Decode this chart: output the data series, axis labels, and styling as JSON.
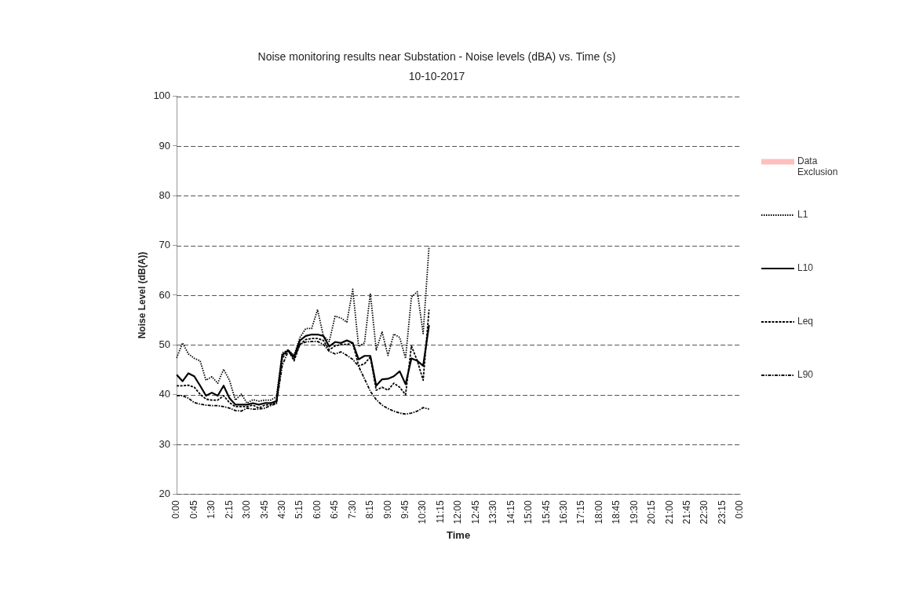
{
  "chart_data": {
    "type": "line",
    "title": "Noise monitoring results near Substation - Noise levels (dBA) vs. Time (s)",
    "subtitle": "10-10-2017",
    "xlabel": "Time",
    "ylabel": "Noise Level (dB(A))",
    "categories": [
      "0:00",
      null,
      null,
      "0:45",
      null,
      null,
      "1:30",
      null,
      null,
      "2:15",
      null,
      null,
      "3:00",
      null,
      null,
      "3:45",
      null,
      null,
      "4:30",
      null,
      null,
      "5:15",
      null,
      null,
      "6:00",
      null,
      null,
      "6:45",
      null,
      null,
      "7:30",
      null,
      null,
      "8:15",
      null,
      null,
      "9:00",
      null,
      null,
      "9:45",
      null,
      null,
      "10:30",
      null,
      null,
      "11:15",
      null,
      null,
      "12:00",
      null,
      null,
      "12:45",
      null,
      null,
      "13:30",
      null,
      null,
      "14:15",
      null,
      null,
      "15:00",
      null,
      null,
      "15:45",
      null,
      null,
      "16:30",
      null,
      null,
      "17:15",
      null,
      null,
      "18:00",
      null,
      null,
      "18:45",
      null,
      null,
      "19:30",
      null,
      null,
      "20:15",
      null,
      null,
      "21:00",
      null,
      null,
      "21:45",
      null,
      null,
      "22:30",
      null,
      null,
      "23:15",
      null,
      null,
      "0:00"
    ],
    "ylim": [
      20,
      100
    ],
    "yticks": [
      20,
      30,
      40,
      50,
      60,
      70,
      80,
      90,
      100
    ],
    "grid": "y",
    "legend": "right",
    "marker": "none",
    "series": [
      {
        "name": "Data Exclusion",
        "type": "bar",
        "color": "#ffbfbf",
        "values": [
          null,
          null,
          null,
          null,
          null,
          null,
          null,
          null,
          null,
          null,
          null,
          null,
          null,
          null,
          null,
          null,
          null,
          null,
          null,
          null,
          null,
          null,
          null,
          null,
          null,
          null,
          null,
          null,
          null,
          null,
          null,
          null,
          null,
          null,
          null,
          null,
          null,
          null,
          null,
          null,
          null,
          null,
          null,
          null,
          null,
          null,
          null,
          null,
          null,
          null,
          null,
          null,
          null,
          null,
          null,
          null,
          null,
          null,
          null,
          null,
          null,
          null,
          null,
          null,
          null,
          null,
          null,
          null,
          null,
          null,
          null,
          null,
          null,
          null,
          null,
          null,
          null,
          null,
          null,
          null,
          null,
          null,
          null,
          null,
          null,
          null,
          null,
          null,
          null,
          null,
          null,
          null,
          null,
          null,
          null,
          null,
          null
        ]
      },
      {
        "name": "L1",
        "color": "#000000",
        "line_style": "dotted",
        "values": [
          47.4,
          50.4,
          48.2,
          47.3,
          46.8,
          42.9,
          43.6,
          42.3,
          45.1,
          42.9,
          38.9,
          40.1,
          38.3,
          39.0,
          38.7,
          38.9,
          38.9,
          39.6,
          48.4,
          49.0,
          47.9,
          51.5,
          53.3,
          53.3,
          57.1,
          51.8,
          50.7,
          55.8,
          55.4,
          54.6,
          61.2,
          49.7,
          50.4,
          60.4,
          49.0,
          52.6,
          47.9,
          52.2,
          51.5,
          47.3,
          59.6,
          60.7,
          52.3,
          69.8,
          null,
          null,
          null,
          null,
          null,
          null,
          null,
          null,
          null,
          null,
          null,
          null,
          null,
          null,
          null,
          null,
          null,
          null,
          null,
          null,
          null,
          null,
          null,
          null,
          null,
          null,
          null,
          null,
          null,
          null,
          null,
          null,
          null,
          null,
          null,
          null,
          null,
          null,
          null,
          null,
          null,
          null,
          null,
          null,
          null,
          null,
          null,
          null,
          null,
          null,
          null,
          null,
          null
        ]
      },
      {
        "name": "L10",
        "color": "#000000",
        "line_style": "solid",
        "values": [
          44.0,
          42.7,
          44.3,
          43.7,
          41.8,
          39.8,
          40.4,
          39.8,
          41.8,
          39.3,
          38.0,
          38.0,
          38.0,
          38.3,
          38.0,
          38.3,
          38.3,
          38.7,
          48.0,
          48.9,
          47.6,
          50.9,
          51.8,
          52.1,
          52.1,
          51.8,
          49.7,
          50.6,
          50.4,
          50.9,
          50.4,
          47.1,
          47.8,
          47.8,
          41.8,
          43.1,
          43.2,
          43.7,
          44.7,
          42.1,
          47.3,
          46.8,
          45.8,
          54.0,
          null,
          null,
          null,
          null,
          null,
          null,
          null,
          null,
          null,
          null,
          null,
          null,
          null,
          null,
          null,
          null,
          null,
          null,
          null,
          null,
          null,
          null,
          null,
          null,
          null,
          null,
          null,
          null,
          null,
          null,
          null,
          null,
          null,
          null,
          null,
          null,
          null,
          null,
          null,
          null,
          null,
          null,
          null,
          null,
          null,
          null,
          null,
          null,
          null,
          null,
          null,
          null,
          null
        ]
      },
      {
        "name": "Leq",
        "color": "#000000",
        "line_style": "dashed",
        "values": [
          41.8,
          41.8,
          41.9,
          41.5,
          40.1,
          39.1,
          38.9,
          38.9,
          39.8,
          38.4,
          37.6,
          37.6,
          37.6,
          37.9,
          37.3,
          37.9,
          38.0,
          38.4,
          47.3,
          49.0,
          46.8,
          50.1,
          51.1,
          51.3,
          51.3,
          50.9,
          49.0,
          49.8,
          50.1,
          50.1,
          50.4,
          45.8,
          46.2,
          47.6,
          40.9,
          41.5,
          40.9,
          42.3,
          41.5,
          40.0,
          49.8,
          46.8,
          42.9,
          57.1,
          null,
          null,
          null,
          null,
          null,
          null,
          null,
          null,
          null,
          null,
          null,
          null,
          null,
          null,
          null,
          null,
          null,
          null,
          null,
          null,
          null,
          null,
          null,
          null,
          null,
          null,
          null,
          null,
          null,
          null,
          null,
          null,
          null,
          null,
          null,
          null,
          null,
          null,
          null,
          null,
          null,
          null,
          null,
          null,
          null,
          null,
          null,
          null,
          null,
          null,
          null,
          null,
          null
        ]
      },
      {
        "name": "L90",
        "color": "#000000",
        "line_style": "dashdot",
        "values": [
          39.8,
          39.8,
          39.3,
          38.4,
          38.1,
          37.9,
          37.8,
          37.8,
          37.6,
          37.3,
          36.8,
          36.7,
          37.3,
          37.1,
          37.1,
          37.3,
          37.8,
          38.2,
          45.9,
          48.7,
          47.3,
          50.1,
          50.6,
          50.7,
          50.7,
          50.1,
          48.7,
          48.2,
          48.6,
          47.9,
          47.1,
          45.7,
          43.2,
          40.7,
          39.0,
          37.9,
          37.2,
          36.7,
          36.3,
          36.1,
          36.3,
          36.7,
          37.4,
          37.1,
          null,
          null,
          null,
          null,
          null,
          null,
          null,
          null,
          null,
          null,
          null,
          null,
          null,
          null,
          null,
          null,
          null,
          null,
          null,
          null,
          null,
          null,
          null,
          null,
          null,
          null,
          null,
          null,
          null,
          null,
          null,
          null,
          null,
          null,
          null,
          null,
          null,
          null,
          null,
          null,
          null,
          null,
          null,
          null,
          null,
          null,
          null,
          null,
          null,
          null,
          null,
          null,
          null
        ]
      }
    ]
  }
}
